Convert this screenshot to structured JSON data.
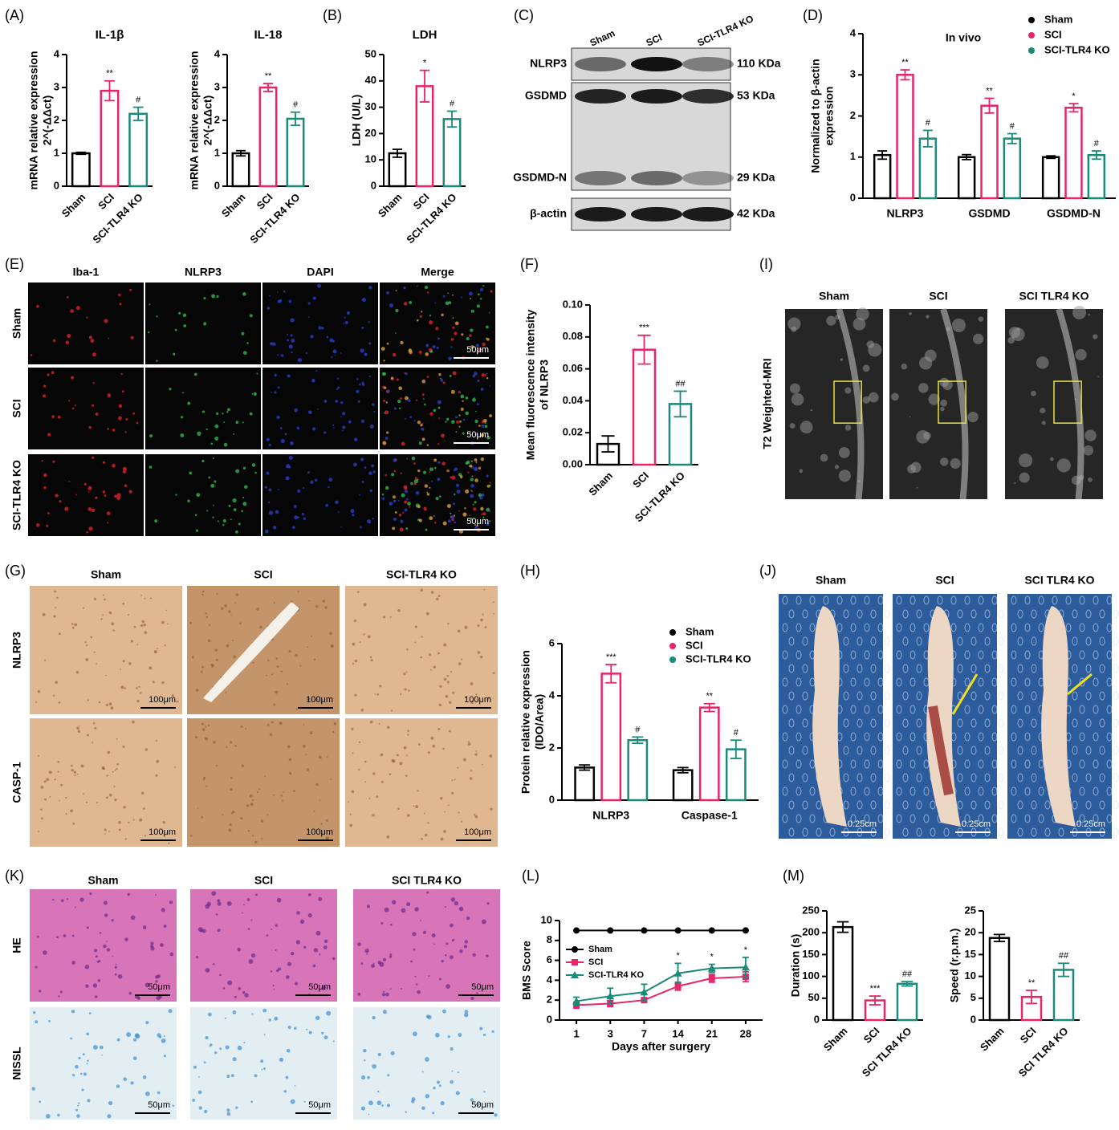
{
  "chart_data": [
    {
      "type": "bar",
      "panel": "(A)",
      "title": "IL-1β",
      "ylabel": [
        "mRNA relative expression",
        "2^(-ΔΔct)"
      ],
      "categories": [
        "Sham",
        "SCI",
        "SCI-TLR4 KO"
      ],
      "values": [
        1.0,
        2.9,
        2.2
      ],
      "errors": [
        0.03,
        0.3,
        0.2
      ],
      "annotations": [
        null,
        "**",
        "#"
      ],
      "colors": [
        "#000000",
        "#e8246b",
        "#1a8a7a"
      ],
      "ylim": [
        0,
        4
      ],
      "yticks": [
        0,
        1,
        2,
        3,
        4
      ]
    },
    {
      "type": "bar",
      "title": "IL-18",
      "ylabel": [
        "mRNA relative expression",
        "2^(-ΔΔct)"
      ],
      "categories": [
        "Sham",
        "SCI",
        "SCI-TLR4 KO"
      ],
      "values": [
        1.0,
        3.0,
        2.05
      ],
      "errors": [
        0.08,
        0.12,
        0.2
      ],
      "annotations": [
        null,
        "**",
        "#"
      ],
      "colors": [
        "#000000",
        "#e8246b",
        "#1a8a7a"
      ],
      "ylim": [
        0,
        4
      ],
      "yticks": [
        0,
        1,
        2,
        3,
        4
      ]
    },
    {
      "type": "bar",
      "panel": "(B)",
      "title": "LDH",
      "ylabel": [
        "LDH (U/L)"
      ],
      "categories": [
        "Sham",
        "SCI",
        "SCI-TLR4 KO"
      ],
      "values": [
        12.5,
        38,
        25.5
      ],
      "errors": [
        1.5,
        6,
        3
      ],
      "annotations": [
        null,
        "*",
        "#"
      ],
      "colors": [
        "#000000",
        "#e8246b",
        "#1a8a7a"
      ],
      "ylim": [
        0,
        50
      ],
      "yticks": [
        0,
        10,
        20,
        30,
        40,
        50
      ]
    },
    {
      "type": "bar",
      "panel": "(D)",
      "annotation": "In vivo",
      "ylabel": [
        "Normalized to β-actin",
        "expression"
      ],
      "categories": [
        "NLRP3",
        "GSDMD",
        "GSDMD-N"
      ],
      "series": [
        {
          "name": "Sham",
          "color": "#000000",
          "values": [
            1.05,
            1.0,
            1.0
          ],
          "errors": [
            0.1,
            0.06,
            0.03
          ],
          "annotations": [
            null,
            null,
            null
          ]
        },
        {
          "name": "SCI",
          "color": "#e8246b",
          "values": [
            3.0,
            2.25,
            2.2
          ],
          "errors": [
            0.12,
            0.18,
            0.1
          ],
          "annotations": [
            "**",
            "**",
            "*"
          ]
        },
        {
          "name": "SCI-TLR4 KO",
          "color": "#1a8a7a",
          "values": [
            1.45,
            1.45,
            1.05
          ],
          "errors": [
            0.2,
            0.12,
            0.1
          ],
          "annotations": [
            "#",
            "#",
            "#"
          ]
        }
      ],
      "ylim": [
        0,
        4
      ],
      "yticks": [
        0,
        1,
        2,
        3,
        4
      ]
    },
    {
      "type": "bar",
      "panel": "(F)",
      "ylabel": [
        "Mean fluorescence intensity",
        "of NLRP3"
      ],
      "categories": [
        "Sham",
        "SCI",
        "SCI-TLR4 KO"
      ],
      "values": [
        0.013,
        0.072,
        0.038
      ],
      "errors": [
        0.005,
        0.009,
        0.008
      ],
      "annotations": [
        null,
        "***",
        "##"
      ],
      "colors": [
        "#000000",
        "#e8246b",
        "#1a8a7a"
      ],
      "ylim": [
        0,
        0.1
      ],
      "yticks": [
        {
          "value": 0,
          "label": "0.00"
        },
        0.02,
        0.04,
        0.06,
        0.08,
        {
          "value": 0.1,
          "label": "0.10"
        }
      ]
    },
    {
      "type": "bar",
      "panel": "(H)",
      "ylabel": [
        "Protein relative expression",
        "(IDO/Area)"
      ],
      "categories": [
        "NLRP3",
        "Caspase-1"
      ],
      "series": [
        {
          "name": "Sham",
          "color": "#000000",
          "values": [
            1.25,
            1.15
          ],
          "errors": [
            0.1,
            0.1
          ],
          "annotations": [
            null,
            null
          ]
        },
        {
          "name": "SCI",
          "color": "#e8246b",
          "values": [
            4.85,
            3.55
          ],
          "errors": [
            0.35,
            0.15
          ],
          "annotations": [
            "***",
            "**"
          ]
        },
        {
          "name": "SCI-TLR4 KO",
          "color": "#1a8a7a",
          "values": [
            2.3,
            1.95
          ],
          "errors": [
            0.12,
            0.35
          ],
          "annotations": [
            "#",
            "#"
          ]
        }
      ],
      "ylim": [
        0,
        6
      ],
      "yticks": [
        0,
        2,
        4,
        6
      ]
    },
    {
      "type": "line",
      "panel": "(L)",
      "ylabel": [
        "BMS Score"
      ],
      "xlabel": "Days after surgery",
      "categories": [
        "1",
        "3",
        "7",
        "14",
        "21",
        "28"
      ],
      "series": [
        {
          "name": "Sham",
          "color": "#000000",
          "marker": "circle",
          "values": [
            9,
            9,
            9,
            9,
            9,
            9
          ],
          "errors": [
            0,
            0,
            0,
            0,
            0,
            0
          ],
          "annotations": [
            null,
            null,
            null,
            null,
            null,
            null
          ]
        },
        {
          "name": "SCI",
          "color": "#e8246b",
          "marker": "square",
          "values": [
            1.5,
            1.65,
            2.0,
            3.4,
            4.2,
            4.35
          ],
          "errors": [
            0.3,
            0.3,
            0.2,
            0.4,
            0.4,
            0.5
          ],
          "annotations": [
            null,
            null,
            null,
            null,
            null,
            null
          ]
        },
        {
          "name": "SCI-TLR4 KO",
          "color": "#1a8a7a",
          "marker": "triangle",
          "values": [
            1.9,
            2.4,
            2.8,
            4.7,
            5.2,
            5.3
          ],
          "errors": [
            0.4,
            0.8,
            0.8,
            1.0,
            0.4,
            1.0
          ],
          "annotations": [
            null,
            null,
            null,
            "*",
            "*",
            "*"
          ]
        }
      ],
      "ylim": [
        0,
        10
      ],
      "yticks": [
        0,
        2,
        4,
        6,
        8,
        10
      ]
    },
    {
      "type": "bar",
      "panel": "(M)",
      "ylabel": [
        "Duration (s)"
      ],
      "categories": [
        "Sham",
        "SCI",
        "SCI TLR4 KO"
      ],
      "values": [
        213,
        45,
        83
      ],
      "errors": [
        12,
        10,
        5
      ],
      "annotations": [
        null,
        "***",
        "##"
      ],
      "colors": [
        "#000000",
        "#e8246b",
        "#1a8a7a"
      ],
      "ylim": [
        0,
        250
      ],
      "yticks": [
        0,
        50,
        100,
        150,
        200,
        250
      ]
    },
    {
      "type": "bar",
      "ylabel": [
        "Speed (r.p.m.)"
      ],
      "categories": [
        "Sham",
        "SCI",
        "SCI TLR4 KO"
      ],
      "values": [
        18.8,
        5.3,
        11.5
      ],
      "errors": [
        0.8,
        1.5,
        1.5
      ],
      "annotations": [
        null,
        "**",
        "##"
      ],
      "colors": [
        "#000000",
        "#e8246b",
        "#1a8a7a"
      ],
      "ylim": [
        0,
        25
      ],
      "yticks": [
        0,
        5,
        10,
        15,
        20,
        25
      ]
    }
  ],
  "western_blot": {
    "panel": "(C)",
    "lanes": [
      "Sham",
      "SCI",
      "SCI-TLR4 KO"
    ],
    "bands": [
      {
        "name": "NLRP3",
        "size": "110 KDa"
      },
      {
        "name": "GSDMD",
        "size": "53 KDa"
      },
      {
        "name": "GSDMD-N",
        "size": "29 KDa"
      },
      {
        "name": "β-actin",
        "size": "42 KDa"
      }
    ]
  },
  "immunofluorescence": {
    "panel": "(E)",
    "columns": [
      "Iba-1",
      "NLRP3",
      "DAPI",
      "Merge"
    ],
    "rows": [
      "Sham",
      "SCI",
      "SCI-TLR4 KO"
    ],
    "scale_bar": "50μm"
  },
  "ihc": {
    "panel": "(G)",
    "columns": [
      "Sham",
      "SCI",
      "SCI-TLR4 KO"
    ],
    "rows": [
      "NLRP3",
      "CASP-1"
    ],
    "scale_bar": "100μm"
  },
  "mri": {
    "panel": "(I)",
    "columns": [
      "Sham",
      "SCI",
      "SCI TLR4 KO"
    ],
    "ylabel": "T2 Weighted-MRI"
  },
  "spinal_cord": {
    "panel": "(J)",
    "columns": [
      "Sham",
      "SCI",
      "SCI TLR4 KO"
    ],
    "scale_bar": "0.25cm"
  },
  "histology": {
    "panel": "(K)",
    "columns": [
      "Sham",
      "SCI",
      "SCI TLR4 KO"
    ],
    "rows": [
      "HE",
      "NISSL"
    ],
    "scale_bar": "50μm"
  }
}
